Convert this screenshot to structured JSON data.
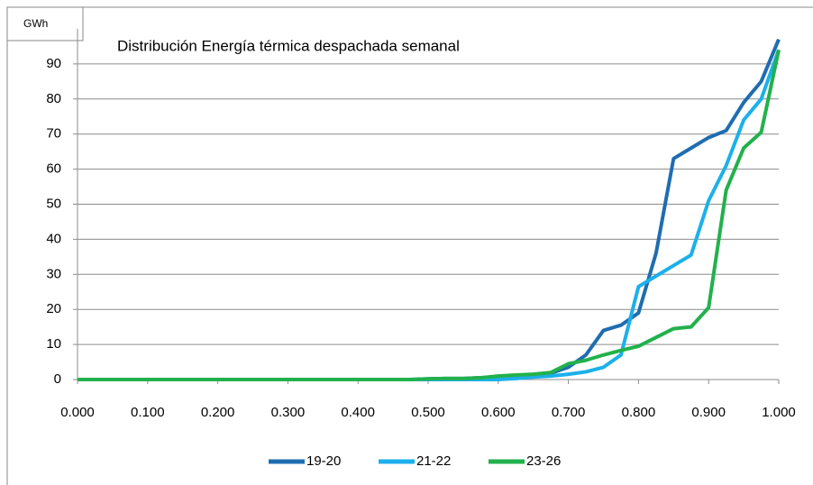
{
  "chart_data": {
    "type": "line",
    "title": "Distribución Energía térmica despachada  semanal",
    "y_label": "GWh",
    "x": [
      0,
      0.025,
      0.05,
      0.075,
      0.1,
      0.125,
      0.15,
      0.175,
      0.2,
      0.225,
      0.25,
      0.275,
      0.3,
      0.325,
      0.35,
      0.375,
      0.4,
      0.425,
      0.45,
      0.475,
      0.5,
      0.525,
      0.55,
      0.575,
      0.6,
      0.625,
      0.65,
      0.675,
      0.7,
      0.725,
      0.75,
      0.775,
      0.8,
      0.825,
      0.85,
      0.875,
      0.9,
      0.925,
      0.95,
      0.975,
      1
    ],
    "series": [
      {
        "name": "19-20",
        "color": "#1f6db0",
        "values": [
          0,
          0,
          0,
          0,
          0,
          0,
          0,
          0,
          0,
          0,
          0,
          0,
          0,
          0,
          0,
          0,
          0,
          0,
          0,
          0,
          0.2,
          0.3,
          0.3,
          0.5,
          0.8,
          1,
          1.3,
          1.8,
          3.5,
          7,
          14,
          15.5,
          19,
          36,
          63,
          66,
          69,
          71,
          79,
          85,
          97
        ]
      },
      {
        "name": "21-22",
        "color": "#1cb0ea",
        "values": [
          0,
          0,
          0,
          0,
          0,
          0,
          0,
          0,
          0,
          0,
          0,
          0,
          0,
          0,
          0,
          0,
          0,
          0,
          0,
          0,
          0,
          0,
          0,
          0,
          0,
          0.3,
          0.7,
          1,
          1.5,
          2.2,
          3.5,
          7,
          26.5,
          29.5,
          32.5,
          35.5,
          51,
          61,
          74,
          80,
          94
        ]
      },
      {
        "name": "23-26",
        "color": "#22b14c",
        "values": [
          0,
          0,
          0,
          0,
          0,
          0,
          0,
          0,
          0,
          0,
          0,
          0,
          0,
          0,
          0,
          0,
          0,
          0,
          0,
          0,
          0.2,
          0.3,
          0.3,
          0.5,
          1,
          1.3,
          1.5,
          2,
          4.5,
          5.5,
          7,
          8.3,
          9.5,
          12,
          14.5,
          15,
          20.5,
          54,
          66,
          70.5,
          94
        ]
      }
    ],
    "xlim": [
      0,
      1
    ],
    "xticks": [
      {
        "value": 0,
        "label": "0.000"
      },
      {
        "value": 0.1,
        "label": "0.100"
      },
      {
        "value": 0.2,
        "label": "0.200"
      },
      {
        "value": 0.3,
        "label": "0.300"
      },
      {
        "value": 0.4,
        "label": "0.400"
      },
      {
        "value": 0.5,
        "label": "0.500"
      },
      {
        "value": 0.6,
        "label": "0.600"
      },
      {
        "value": 0.7,
        "label": "0.700"
      },
      {
        "value": 0.8,
        "label": "0.800"
      },
      {
        "value": 0.9,
        "label": "0.900"
      },
      {
        "value": 1,
        "label": "1.000"
      }
    ],
    "ylim": [
      0,
      100
    ],
    "yticks": [
      0,
      10,
      20,
      30,
      40,
      50,
      60,
      70,
      80,
      90
    ],
    "grid": true,
    "legend": "bottom"
  }
}
